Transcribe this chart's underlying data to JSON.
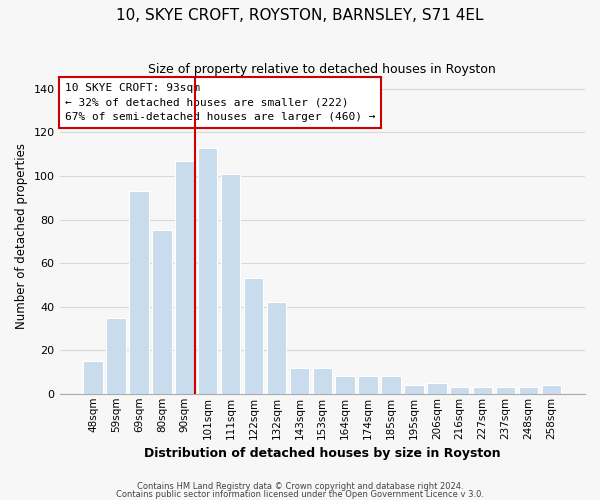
{
  "title": "10, SKYE CROFT, ROYSTON, BARNSLEY, S71 4EL",
  "subtitle": "Size of property relative to detached houses in Royston",
  "xlabel": "Distribution of detached houses by size in Royston",
  "ylabel": "Number of detached properties",
  "bar_labels": [
    "48sqm",
    "59sqm",
    "69sqm",
    "80sqm",
    "90sqm",
    "101sqm",
    "111sqm",
    "122sqm",
    "132sqm",
    "143sqm",
    "153sqm",
    "164sqm",
    "174sqm",
    "185sqm",
    "195sqm",
    "206sqm",
    "216sqm",
    "227sqm",
    "237sqm",
    "248sqm",
    "258sqm"
  ],
  "bar_values": [
    15,
    35,
    93,
    75,
    107,
    113,
    101,
    53,
    42,
    12,
    12,
    8,
    8,
    8,
    4,
    5,
    3,
    3,
    3,
    3,
    4
  ],
  "bar_color": "#c9dced",
  "highlight_line_color": "#cc0000",
  "highlight_bar_index": 4,
  "ylim": [
    0,
    145
  ],
  "yticks": [
    0,
    20,
    40,
    60,
    80,
    100,
    120,
    140
  ],
  "annotation_title": "10 SKYE CROFT: 93sqm",
  "annotation_line1": "← 32% of detached houses are smaller (222)",
  "annotation_line2": "67% of semi-detached houses are larger (460) →",
  "footer1": "Contains HM Land Registry data © Crown copyright and database right 2024.",
  "footer2": "Contains public sector information licensed under the Open Government Licence v 3.0.",
  "background_color": "#f7f7f7",
  "grid_color": "#d8d8d8"
}
